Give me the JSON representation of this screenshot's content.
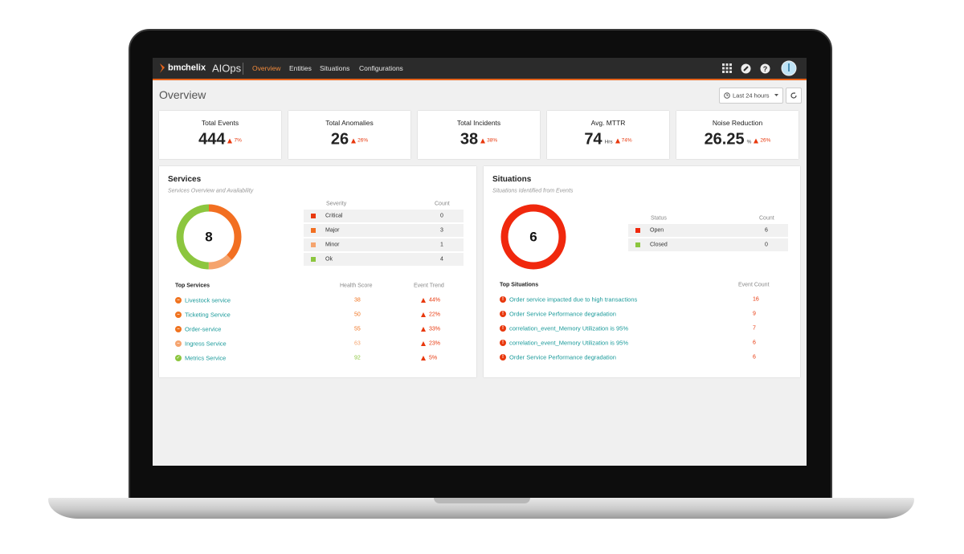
{
  "nav": {
    "brand_prefix": "bmc",
    "brand": "helix",
    "product": "AIOps",
    "tabs": [
      "Overview",
      "Entities",
      "Situations",
      "Configurations"
    ]
  },
  "page": {
    "title": "Overview",
    "time_range": "Last 24 hours"
  },
  "kpis": [
    {
      "label": "Total Events",
      "value": 444,
      "change": "7%"
    },
    {
      "label": "Total Anomalies",
      "value": 26,
      "change": "26%"
    },
    {
      "label": "Total Incidents",
      "value": 38,
      "change": "38%"
    },
    {
      "label": "Avg. MTTR",
      "value": 74,
      "unit": "Hrs",
      "change": "74%"
    },
    {
      "label": "Noise Reduction",
      "value": 26.25,
      "unit": "%",
      "change": "26%"
    }
  ],
  "services": {
    "title": "Services",
    "subtitle": "Services Overview and Availability",
    "total": 8,
    "table": {
      "headers": [
        "Severity",
        "Count"
      ],
      "rows": [
        {
          "label": "Critical",
          "count": 0,
          "color": "#e8380d"
        },
        {
          "label": "Major",
          "count": 3,
          "color": "#f26f21"
        },
        {
          "label": "Minor",
          "count": 1,
          "color": "#f5a46e"
        },
        {
          "label": "Ok",
          "count": 4,
          "color": "#8cc63f"
        }
      ]
    },
    "top": {
      "headers": [
        "Top Services",
        "Health Score",
        "Event Trend"
      ],
      "rows": [
        {
          "name": "Livestock service",
          "score": 38,
          "trend": "44%",
          "color": "#f0731f"
        },
        {
          "name": "Ticketing Service",
          "score": 50,
          "trend": "22%",
          "color": "#f0731f"
        },
        {
          "name": "Order-service",
          "score": 55,
          "trend": "33%",
          "color": "#f0731f"
        },
        {
          "name": "Ingress Service",
          "score": 63,
          "trend": "23%",
          "color": "#f5a46e"
        },
        {
          "name": "Metrics Service",
          "score": 92,
          "trend": "5%",
          "color": "#8cc63f"
        }
      ]
    }
  },
  "situations": {
    "title": "Situations",
    "subtitle": "Situations Identified from Events",
    "total": 6,
    "table": {
      "headers": [
        "Status",
        "Count"
      ],
      "rows": [
        {
          "label": "Open",
          "count": 6,
          "color": "#f0280d"
        },
        {
          "label": "Closed",
          "count": 0,
          "color": "#8cc63f"
        }
      ]
    },
    "top": {
      "headers": [
        "Top Situations",
        "Event Count"
      ],
      "rows": [
        {
          "name": "Order service impacted due to high transactions",
          "count": 16
        },
        {
          "name": "Order Service Performance degradation",
          "count": 9
        },
        {
          "name": "correlation_event_Memory Utilization is 95%",
          "count": 7
        },
        {
          "name": "correlation_event_Memory Utilization is 95%",
          "count": 6
        },
        {
          "name": "Order Service Performance degradation",
          "count": 6
        }
      ]
    }
  }
}
